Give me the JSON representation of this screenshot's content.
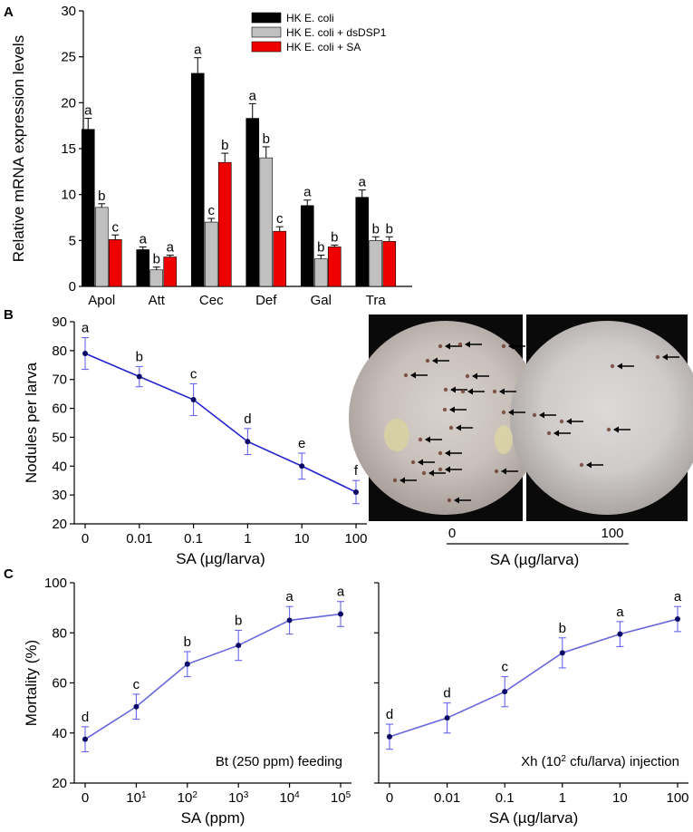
{
  "panels": [
    "A",
    "B",
    "C"
  ],
  "chart_data": [
    {
      "id": "A",
      "type": "bar",
      "ylabel": "Relative mRNA expression levels",
      "ylim": [
        0,
        30
      ],
      "yticks": [
        0,
        5,
        10,
        15,
        20,
        25,
        30
      ],
      "categories": [
        "Apol",
        "Att",
        "Cec",
        "Def",
        "Gal",
        "Tra"
      ],
      "series": [
        {
          "name": "HK E. coli",
          "color": "#000000",
          "values": [
            17.1,
            4.0,
            23.2,
            18.3,
            8.8,
            9.7
          ],
          "errors": [
            1.2,
            0.3,
            1.7,
            1.6,
            0.6,
            0.8
          ],
          "letters": [
            "a",
            "a",
            "a",
            "a",
            "a",
            "a"
          ]
        },
        {
          "name": "HK E. coli + dsDSP1",
          "color": "#c0c0c0",
          "values": [
            8.6,
            1.8,
            7.0,
            14.0,
            3.0,
            5.0
          ],
          "errors": [
            0.4,
            0.3,
            0.4,
            1.2,
            0.4,
            0.4
          ],
          "letters": [
            "b",
            "b",
            "c",
            "b",
            "b",
            "b"
          ]
        },
        {
          "name": "HK E. coli + SA",
          "color": "#ee0000",
          "values": [
            5.1,
            3.2,
            13.5,
            6.0,
            4.3,
            4.9
          ],
          "errors": [
            0.5,
            0.2,
            1.0,
            0.5,
            0.2,
            0.5
          ],
          "letters": [
            "c",
            "a",
            "b",
            "c",
            "b",
            "b"
          ]
        }
      ]
    },
    {
      "id": "B",
      "type": "line",
      "ylabel": "Nodules per larva",
      "xlabel": "SA (µg/larva)",
      "ylim": [
        20,
        90
      ],
      "yticks": [
        20,
        30,
        40,
        50,
        60,
        70,
        80,
        90
      ],
      "x": [
        "0",
        "0.01",
        "0.1",
        "1",
        "10",
        "100"
      ],
      "values": [
        79,
        71,
        63,
        48.5,
        40,
        31
      ],
      "errors": [
        5.5,
        3.5,
        5.5,
        4.5,
        4.5,
        4.0
      ],
      "letters": [
        "a",
        "b",
        "c",
        "d",
        "e",
        "f"
      ],
      "color": "#2222cc",
      "photo": {
        "labels": [
          "0",
          "100"
        ],
        "xlabel": "SA (µg/larva)"
      }
    },
    {
      "id": "C1",
      "type": "line",
      "ylabel": "Mortality (%)",
      "xlabel": "SA (ppm)",
      "ylim": [
        20,
        100
      ],
      "yticks": [
        20,
        40,
        60,
        80,
        100
      ],
      "x": [
        "0",
        "10^1",
        "10^2",
        "10^3",
        "10^4",
        "10^5"
      ],
      "values": [
        37.5,
        50.5,
        67.5,
        75,
        85,
        87.5
      ],
      "errors": [
        5,
        5,
        5,
        6,
        5.5,
        5
      ],
      "letters": [
        "d",
        "c",
        "b",
        "b",
        "a",
        "a"
      ],
      "annotation": "Bt (250 ppm) feeding",
      "color": "#6666dd"
    },
    {
      "id": "C2",
      "type": "line",
      "xlabel": "SA (µg/larva)",
      "ylim": [
        20,
        100
      ],
      "x": [
        "0",
        "0.01",
        "0.1",
        "1",
        "10",
        "100"
      ],
      "values": [
        38.5,
        46,
        56.5,
        72,
        79.5,
        85.5
      ],
      "errors": [
        5,
        6,
        6,
        6,
        5,
        5
      ],
      "letters": [
        "d",
        "d",
        "c",
        "b",
        "a",
        "a"
      ],
      "annotation": "Xh (10^2 cfu/larva) injection",
      "color": "#6666dd"
    }
  ]
}
